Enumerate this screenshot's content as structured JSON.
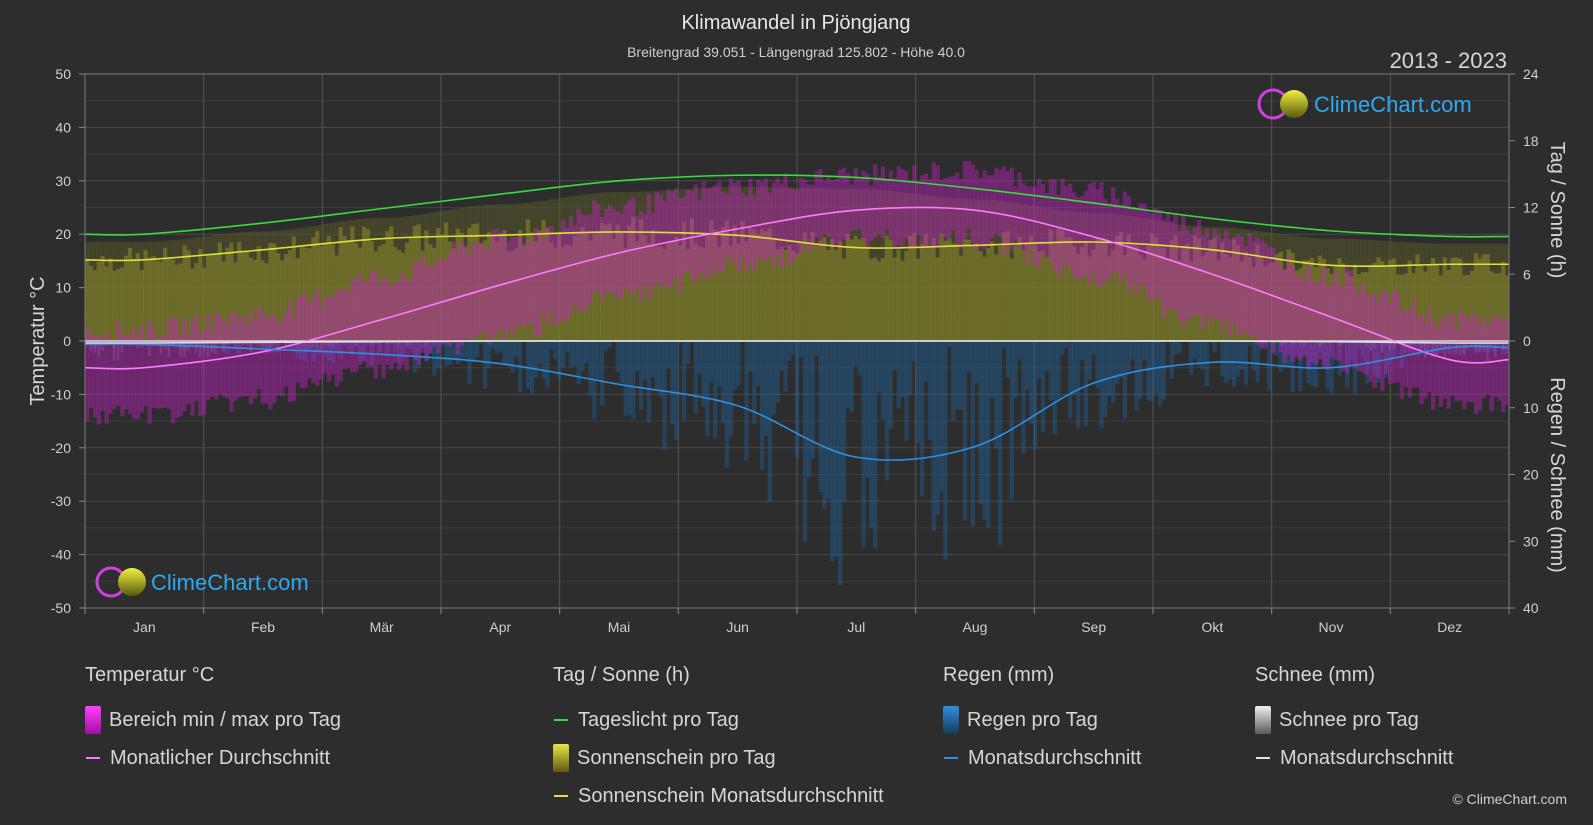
{
  "title": "Klimawandel in Pjöngjang",
  "subtitle": "Breitengrad 39.051 - Längengrad 125.802 - Höhe 40.0",
  "period": "2013 - 2023",
  "watermark": "ClimeChart.com",
  "copyright": "© ClimeChart.com",
  "chart_data": {
    "type": "line",
    "categories": [
      "Jan",
      "Feb",
      "Mär",
      "Apr",
      "Mai",
      "Jun",
      "Jul",
      "Aug",
      "Sep",
      "Okt",
      "Nov",
      "Dez"
    ],
    "y_left": {
      "label": "Temperatur °C",
      "range": [
        -50,
        50
      ],
      "ticks": [
        50,
        40,
        30,
        20,
        10,
        0,
        -10,
        -20,
        -30,
        -40,
        -50
      ]
    },
    "y_right_top": {
      "label": "Tag / Sonne (h)",
      "range": [
        0,
        24
      ],
      "ticks": [
        24,
        18,
        12,
        6,
        0
      ]
    },
    "y_right_bottom": {
      "label": "Regen / Schnee (mm)",
      "range": [
        0,
        40
      ],
      "ticks": [
        10,
        20,
        30,
        40
      ]
    },
    "grid": true,
    "series": [
      {
        "name": "Tageslicht pro Tag",
        "axis": "sun_hours",
        "color": "#3ddc3d",
        "values": [
          9.6,
          10.6,
          11.9,
          13.2,
          14.4,
          14.9,
          14.7,
          13.7,
          12.4,
          11.0,
          9.9,
          9.4
        ]
      },
      {
        "name": "Sonnenschein Monatsdurchschnitt",
        "axis": "sun_hours",
        "color": "#e0e03a",
        "values": [
          7.3,
          8.2,
          9.2,
          9.5,
          9.8,
          9.5,
          8.4,
          8.6,
          8.9,
          8.2,
          6.8,
          6.9
        ]
      },
      {
        "name": "Monatlicher Durchschnitt",
        "axis": "temperature",
        "color": "#ff7aff",
        "values": [
          -5.0,
          -2.0,
          4.0,
          10.5,
          16.5,
          21.0,
          24.5,
          24.5,
          19.5,
          12.5,
          4.5,
          -3.5
        ]
      },
      {
        "name": "Monatsdurchschnitt",
        "group": "rain",
        "axis": "precip_mm",
        "color": "#2f8fe0",
        "values": [
          0.5,
          1.2,
          2.0,
          3.4,
          6.5,
          9.7,
          17.4,
          15.8,
          6.3,
          3.2,
          4.0,
          1.0
        ]
      },
      {
        "name": "Monatsdurchschnitt",
        "group": "snow",
        "axis": "precip_mm",
        "color": "#e0e0e0",
        "values": [
          0.3,
          0.2,
          0.1,
          0,
          0,
          0,
          0,
          0,
          0,
          0,
          0.1,
          0.3
        ]
      }
    ],
    "temperature_range": {
      "name": "Bereich min / max pro Tag",
      "min": [
        -12,
        -9,
        -3,
        3,
        10,
        16,
        21,
        21,
        14,
        5,
        -3,
        -10
      ],
      "max": [
        0,
        3,
        10,
        17,
        23,
        27,
        29,
        30,
        26,
        19,
        10,
        2
      ]
    },
    "sunshine_daily": {
      "name": "Sonnenschein pro Tag"
    },
    "rain_daily": {
      "name": "Regen pro Tag"
    },
    "snow_daily": {
      "name": "Schnee pro Tag"
    }
  },
  "legend": {
    "temperature": {
      "heading": "Temperatur °C",
      "range_label": "Bereich min / max pro Tag",
      "avg_label": "Monatlicher Durchschnitt"
    },
    "sun": {
      "heading": "Tag / Sonne (h)",
      "daylight_label": "Tageslicht pro Tag",
      "sunshine_label": "Sonnenschein pro Tag",
      "sunshine_avg_label": "Sonnenschein Monatsdurchschnitt"
    },
    "rain": {
      "heading": "Regen (mm)",
      "daily_label": "Regen pro Tag",
      "avg_label": "Monatsdurchschnitt"
    },
    "snow": {
      "heading": "Schnee (mm)",
      "daily_label": "Schnee pro Tag",
      "avg_label": "Monatsdurchschnitt"
    }
  },
  "colors": {
    "background": "#2d2d2d",
    "daylight": "#3ddc3d",
    "sunshine": "#e0e03a",
    "temp_avg": "#ff7aff",
    "temp_range": "#e020e0",
    "rain": "#2f8fe0",
    "snow": "#e0e0e0"
  }
}
